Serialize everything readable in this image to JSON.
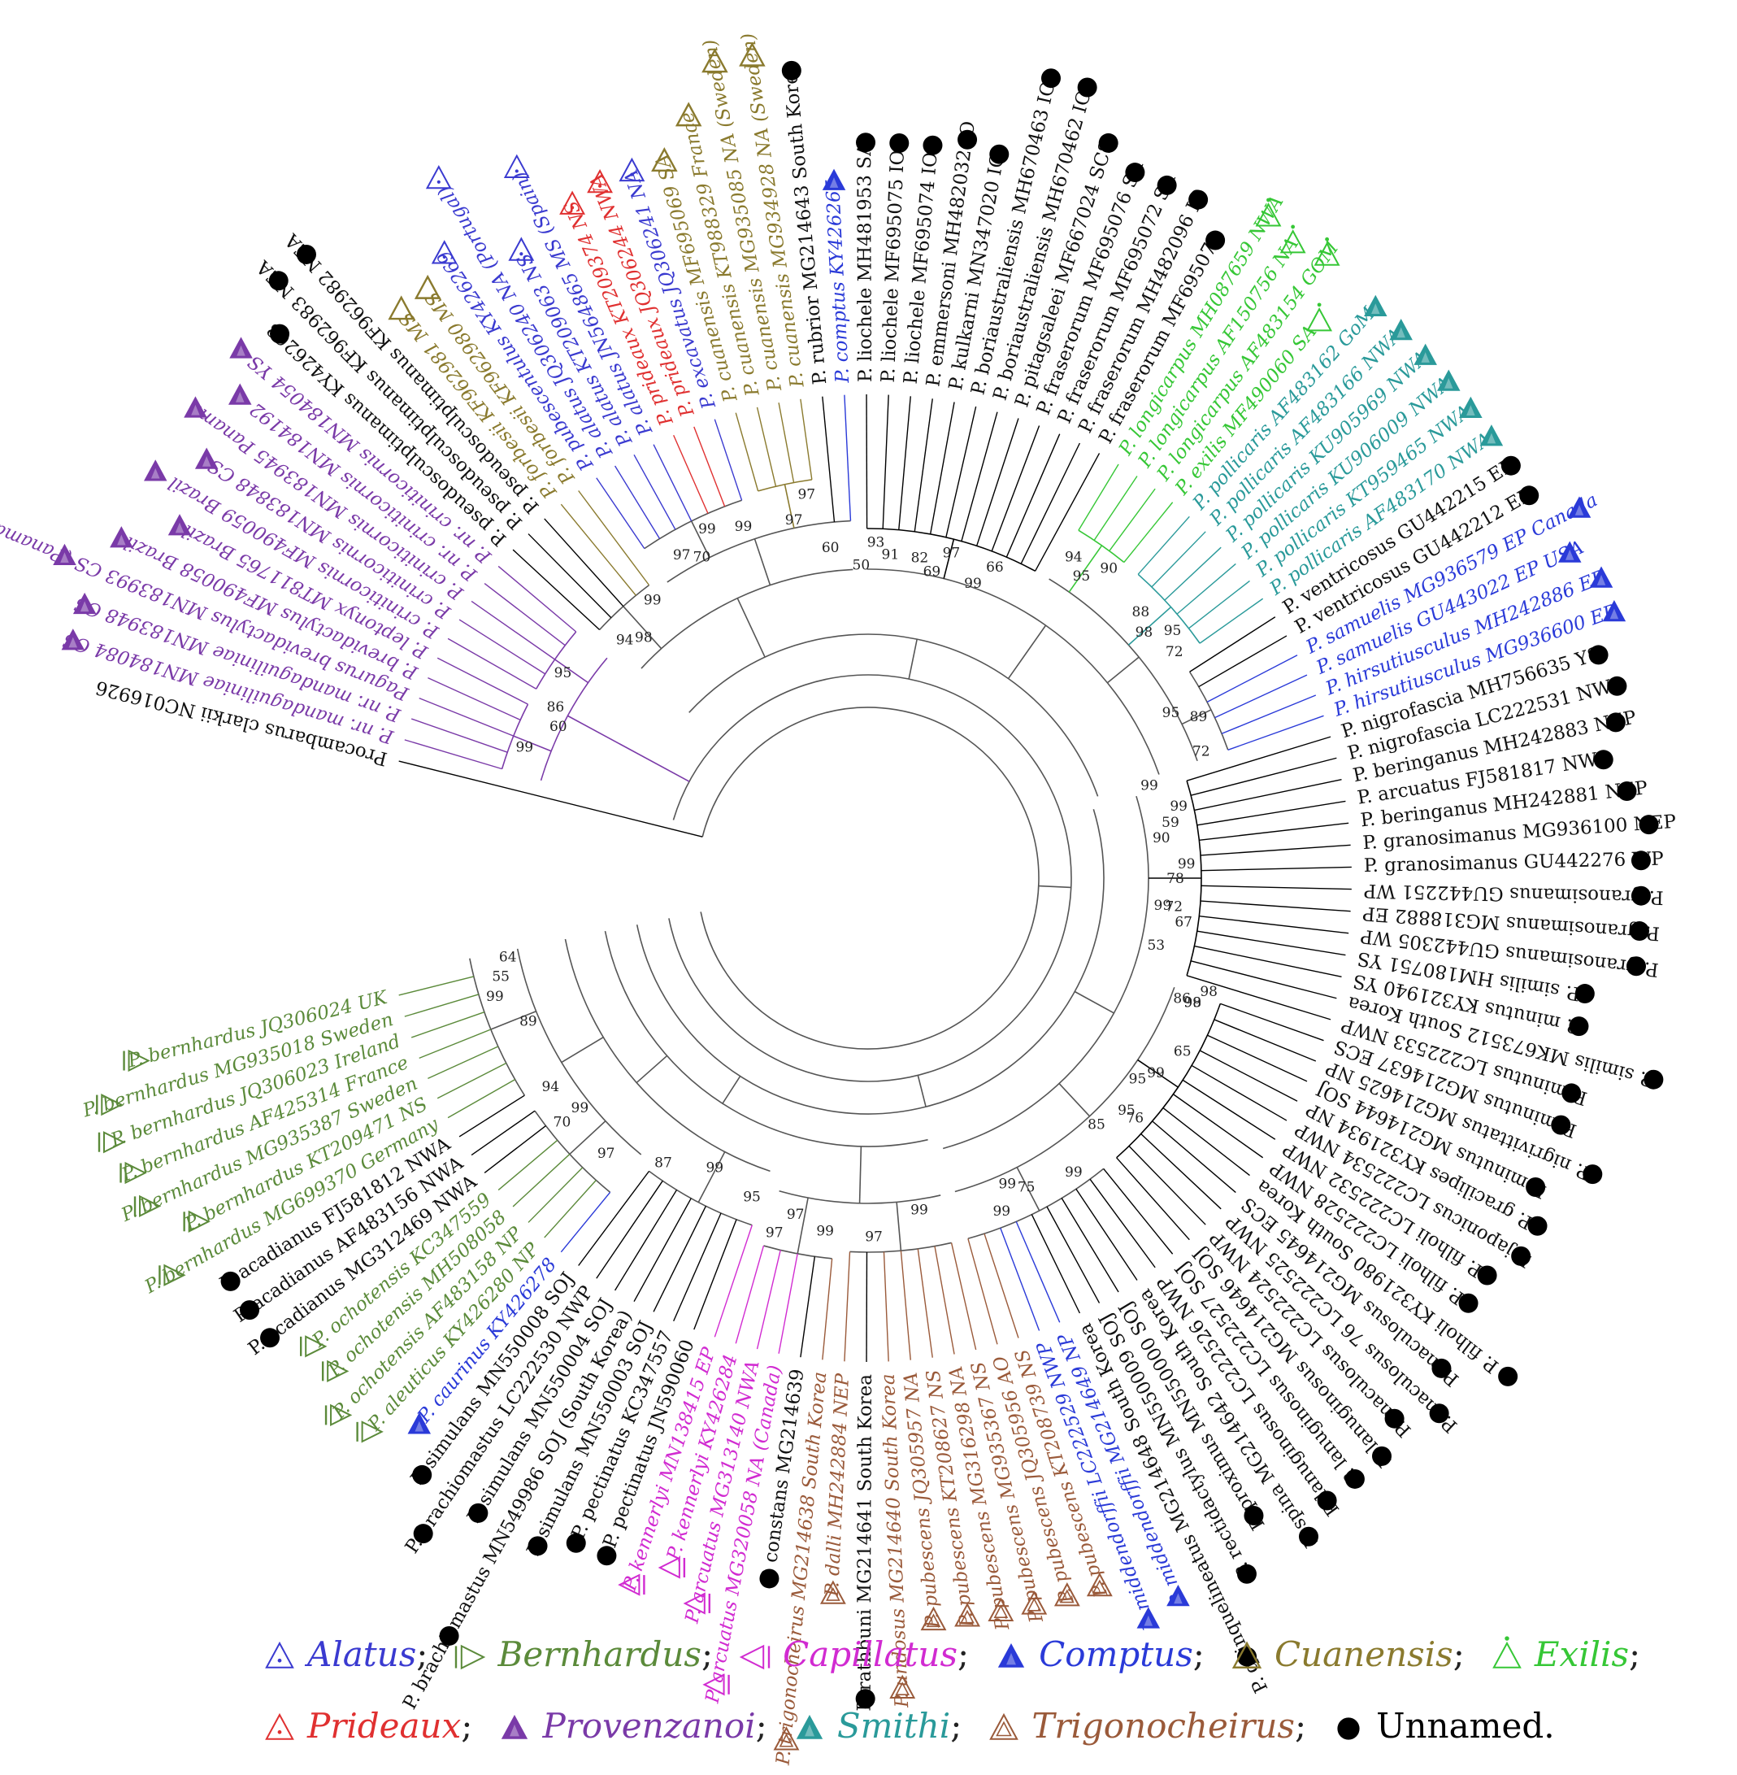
{
  "root_label": "Procambarus clarkii NC016926",
  "groups": {
    "alatus": {
      "label": "Alatus",
      "color": "#3a3ad0",
      "icon": "triangle-dot-outline"
    },
    "bernhardus": {
      "label": "Bernhardus",
      "color": "#5b8a3a",
      "icon": "triangle-right-bar-outline"
    },
    "capillatus": {
      "label": "Capillatus",
      "color": "#d12bd1",
      "icon": "triangle-left-bar-outline"
    },
    "comptus": {
      "label": "Comptus",
      "color": "#2a3ad8",
      "icon": "triangle-filled"
    },
    "cuanensis": {
      "label": "Cuanensis",
      "color": "#8a7a2e",
      "icon": "triangle-outline"
    },
    "exilis": {
      "label": "Exilis",
      "color": "#36c736",
      "icon": "triangle-dot-above"
    },
    "prideaux": {
      "label": "Prideaux",
      "color": "#e03030",
      "icon": "triangle-dot-outline"
    },
    "provenzanoi": {
      "label": "Provenzanoi",
      "color": "#7a3aa8",
      "icon": "triangle-filled"
    },
    "smithi": {
      "label": "Smithi",
      "color": "#2a9a9a",
      "icon": "triangle-filled"
    },
    "trigonocheirus": {
      "label": "Trigonocheirus",
      "color": "#9a5a3a",
      "icon": "triangle-double-outline"
    },
    "unnamed": {
      "label": "Unnamed.",
      "color": "#000000",
      "icon": "filled-circle"
    }
  },
  "legend_order": [
    "alatus",
    "bernhardus",
    "capillatus",
    "comptus",
    "cuanensis",
    "exilis",
    "prideaux",
    "provenzanoi",
    "smithi",
    "trigonocheirus",
    "unnamed"
  ],
  "leaves": [
    {
      "label": "Procambarus clarkii NC016926",
      "group": "unnamed",
      "marker": false
    },
    {
      "label": "P. nr. mandaguiliniae MN184084 CS",
      "group": "provenzanoi"
    },
    {
      "label": "P. nr. mandaguiliniae MN183948 CS",
      "group": "provenzanoi"
    },
    {
      "label": "Pagurus brevidactylus MN183993 CS (Panama)",
      "group": "provenzanoi"
    },
    {
      "label": "P. brevidactylus MF490058 Brazil",
      "group": "provenzanoi"
    },
    {
      "label": "P. leptonyx MT811765 Brazil",
      "group": "provenzanoi"
    },
    {
      "label": "P. criniticornis MF490059 Brazil",
      "group": "provenzanoi"
    },
    {
      "label": "P. criniticornis MN183848 CS",
      "group": "provenzanoi"
    },
    {
      "label": "P. criniticornis MN183945 Panama",
      "group": "provenzanoi"
    },
    {
      "label": "P. nr. criniticornis MN184192",
      "group": "provenzanoi"
    },
    {
      "label": "P. nr. criniticornis MN184054 YS",
      "group": "provenzanoi"
    },
    {
      "label": "P. pseudosculptimanus KY426268",
      "group": "unnamed"
    },
    {
      "label": "P. pseudosculptimanus KF962983 NEA",
      "group": "unnamed"
    },
    {
      "label": "P. pseudosculptimanus KF962982 NEA",
      "group": "unnamed"
    },
    {
      "label": "P. forbesii KF962981 MS",
      "group": "cuanensis"
    },
    {
      "label": "P. forbesii KF962980 MS",
      "group": "cuanensis"
    },
    {
      "label": "P. pubescentulus KY426269",
      "group": "alatus"
    },
    {
      "label": "P. alatus JQ306240 NA (Portugal)",
      "group": "alatus"
    },
    {
      "label": "P. alatus KT209063 NS",
      "group": "alatus"
    },
    {
      "label": "P. alatus JN564865 MS (Spain)",
      "group": "alatus"
    },
    {
      "label": "P. prideaux KT209374 NS",
      "group": "prideaux"
    },
    {
      "label": "P. prideaux JQ306244 NWA",
      "group": "prideaux"
    },
    {
      "label": "P. excavatus JQ306241 NA",
      "group": "alatus"
    },
    {
      "label": "P. cuanensis MF695069 SA",
      "group": "cuanensis"
    },
    {
      "label": "P. cuanensis KT988329 France",
      "group": "cuanensis"
    },
    {
      "label": "P. cuanensis MG935085 NA (Sweden)",
      "group": "cuanensis"
    },
    {
      "label": "P. cuanensis MG934928 NA (Sweden)",
      "group": "cuanensis"
    },
    {
      "label": "P. rubrior MG214643 South Korea",
      "group": "unnamed"
    },
    {
      "label": "P. comptus KY426265",
      "group": "comptus"
    },
    {
      "label": "P. liochele MH481953 SA",
      "group": "unnamed"
    },
    {
      "label": "P. liochele MF695075 IO",
      "group": "unnamed"
    },
    {
      "label": "P. liochele MF695074 IO",
      "group": "unnamed"
    },
    {
      "label": "P. emmersoni MH482032 IO",
      "group": "unnamed"
    },
    {
      "label": "P. kulkarni MN347020 IO",
      "group": "unnamed"
    },
    {
      "label": "P. boriaustraliensis MH670463 IO",
      "group": "unnamed"
    },
    {
      "label": "P. boriaustraliensis MH670462 IO",
      "group": "unnamed"
    },
    {
      "label": "P. pitagsaleei MF667024 SCS",
      "group": "unnamed"
    },
    {
      "label": "P. fraserorum MF695076 SA",
      "group": "unnamed"
    },
    {
      "label": "P. fraserorum MF695072 SA",
      "group": "unnamed"
    },
    {
      "label": "P. fraserorum MH482096 IO",
      "group": "unnamed"
    },
    {
      "label": "P. fraserorum MF695073",
      "group": "unnamed"
    },
    {
      "label": "P. longicarpus MH087659 NWA",
      "group": "exilis"
    },
    {
      "label": "P. longicarpus AF150756 NA",
      "group": "exilis"
    },
    {
      "label": "P. longicarpus AF483154 GOM",
      "group": "exilis"
    },
    {
      "label": "P. exilis MF490060 SA",
      "group": "exilis"
    },
    {
      "label": "P. pollicaris AF483162 GoM",
      "group": "smithi"
    },
    {
      "label": "P. pollicaris AF483166 NWA",
      "group": "smithi"
    },
    {
      "label": "P. pollicaris KU905969 NWA",
      "group": "smithi"
    },
    {
      "label": "P. pollicaris KU906009 NWA",
      "group": "smithi"
    },
    {
      "label": "P. pollicaris KT959465 NWA",
      "group": "smithi"
    },
    {
      "label": "P. pollicaris AF483170 NWA",
      "group": "smithi"
    },
    {
      "label": "P. ventricosus GU442215 EP",
      "group": "unnamed"
    },
    {
      "label": "P. ventricosus GU442212 EP",
      "group": "unnamed"
    },
    {
      "label": "P. samuelis MG936579 EP Canada",
      "group": "comptus"
    },
    {
      "label": "P. samuelis GU443022 EP USA",
      "group": "comptus"
    },
    {
      "label": "P. hirsutiusculus MH242886 EP",
      "group": "comptus"
    },
    {
      "label": "P. hirsutiusculus MG936600 EP",
      "group": "comptus"
    },
    {
      "label": "P. nigrofascia MH756635 YS",
      "group": "unnamed"
    },
    {
      "label": "P. nigrofascia LC222531 NWP",
      "group": "unnamed"
    },
    {
      "label": "P. beringanus MH242883 NEP",
      "group": "unnamed"
    },
    {
      "label": "P. arcuatus FJ581817 NWA",
      "group": "unnamed"
    },
    {
      "label": "P. beringanus MH242881 NEP",
      "group": "unnamed"
    },
    {
      "label": "P. granosimanus MG936100 NEP",
      "group": "unnamed"
    },
    {
      "label": "P. granosimanus GU442276 WP",
      "group": "unnamed"
    },
    {
      "label": "P. granosimanus GU442251 WP",
      "group": "unnamed"
    },
    {
      "label": "P. granosimanus MG318882 EP",
      "group": "unnamed"
    },
    {
      "label": "P. granosimanus GU442305 WP",
      "group": "unnamed"
    },
    {
      "label": "P. similis HM180751 YS",
      "group": "unnamed"
    },
    {
      "label": "P. minutus KY321940 YS",
      "group": "unnamed"
    },
    {
      "label": "P. similis MK673512 South Korea",
      "group": "unnamed"
    },
    {
      "label": "P. minutus LC222533 NWP",
      "group": "unnamed"
    },
    {
      "label": "P. minutus MG214637 ECS",
      "group": "unnamed"
    },
    {
      "label": "P. nigrivittatus MG214625 NP",
      "group": "unnamed"
    },
    {
      "label": "P. minutus MG214644 SOJ",
      "group": "unnamed"
    },
    {
      "label": "P. gracilipes KY321934 NP",
      "group": "unnamed"
    },
    {
      "label": "P. japonicus LC222534 NWP",
      "group": "unnamed"
    },
    {
      "label": "P. filholi LC222532 NWP",
      "group": "unnamed"
    },
    {
      "label": "P. filholi LC222528 NWP",
      "group": "unnamed"
    },
    {
      "label": "P. filholi KY321980 South Korea",
      "group": "unnamed"
    },
    {
      "label": "P. maculosus MG214645 ECS",
      "group": "unnamed"
    },
    {
      "label": "P. maculosus 76 LC222525 NWP",
      "group": "unnamed"
    },
    {
      "label": "P. maculosus LC222524 NWP",
      "group": "unnamed"
    },
    {
      "label": "P. lanuginosus MG214646 SOJ",
      "group": "unnamed"
    },
    {
      "label": "P. lanuginosus LC222527 SOJ",
      "group": "unnamed"
    },
    {
      "label": "P. lanuginosus LC222526 NWP",
      "group": "unnamed"
    },
    {
      "label": "P. spina MG214642 South Korea",
      "group": "unnamed"
    },
    {
      "label": "P. proximus MN550000 SOJ",
      "group": "unnamed"
    },
    {
      "label": "P. rectidactylus MN550009 SOJ",
      "group": "unnamed"
    },
    {
      "label": "P. quinquelineatus MG214648 South Korea",
      "group": "unnamed"
    },
    {
      "label": "P. middendorffii MG214649 NP",
      "group": "comptus"
    },
    {
      "label": "P. middendorffii LC222529 NWP",
      "group": "comptus"
    },
    {
      "label": "P. pubescens KT208739 NS",
      "group": "trigonocheirus"
    },
    {
      "label": "P. pubescens JQ305956 AO",
      "group": "trigonocheirus"
    },
    {
      "label": "P. pubescens MG935367 NS",
      "group": "trigonocheirus"
    },
    {
      "label": "P. pubescens MG316298 NA",
      "group": "trigonocheirus"
    },
    {
      "label": "P. pubescens KT208627 NS",
      "group": "trigonocheirus"
    },
    {
      "label": "P. pubescens JQ305957 NA",
      "group": "trigonocheirus"
    },
    {
      "label": "P. undosus MG214640 South Korea",
      "group": "trigonocheirus"
    },
    {
      "label": "P. rathbuni MG214641 South Korea",
      "group": "unnamed"
    },
    {
      "label": "P. dalli MH242884 NEP",
      "group": "trigonocheirus"
    },
    {
      "label": "P. trigonocheirus MG214638 South Korea",
      "group": "trigonocheirus"
    },
    {
      "label": "P. constans MG214639",
      "group": "unnamed"
    },
    {
      "label": "P. arcuatus MG320058 NA (Canada)",
      "group": "capillatus"
    },
    {
      "label": "P. arcuatus MG313140 NWA",
      "group": "capillatus"
    },
    {
      "label": "P. kennerlyi KY426284",
      "group": "capillatus"
    },
    {
      "label": "P. kennerlyi MN138415 EP",
      "group": "capillatus"
    },
    {
      "label": "P. pectinatus JN590060",
      "group": "unnamed"
    },
    {
      "label": "P. pectinatus KC347557",
      "group": "unnamed"
    },
    {
      "label": "P. simulans MN550003 SOJ",
      "group": "unnamed"
    },
    {
      "label": "P. brachiomastus MN549986 SOJ (South Korea)",
      "group": "unnamed"
    },
    {
      "label": "P. simulans MN550004 SOJ",
      "group": "unnamed"
    },
    {
      "label": "P. brachiomastus LC222530 NWP",
      "group": "unnamed"
    },
    {
      "label": "P. simulans MN550008 SOJ",
      "group": "unnamed"
    },
    {
      "label": "P. caurinus KY426278",
      "group": "comptus"
    },
    {
      "label": "P. aleuticus KY426280 NP",
      "group": "bernhardus"
    },
    {
      "label": "P. ochotensis AF483158 NP",
      "group": "bernhardus"
    },
    {
      "label": "P. ochotensis MH508058",
      "group": "bernhardus"
    },
    {
      "label": "P. ochotensis KC347559",
      "group": "bernhardus"
    },
    {
      "label": "P. acadianus MG312469 NWA",
      "group": "unnamed"
    },
    {
      "label": "P. acadianus AF483156 NWA",
      "group": "unnamed"
    },
    {
      "label": "P. acadianus FJ581812 NWA",
      "group": "unnamed"
    },
    {
      "label": "P. bernhardus MG699370 Germany",
      "group": "bernhardus"
    },
    {
      "label": "P. bernhardus KT209471 NS",
      "group": "bernhardus"
    },
    {
      "label": "P. bernhardus MG935387 Sweden",
      "group": "bernhardus"
    },
    {
      "label": "P. bernhardus AF425314 France",
      "group": "bernhardus"
    },
    {
      "label": "P. bernhardus JQ306023 Ireland",
      "group": "bernhardus"
    },
    {
      "label": "P. bernhardus MG935018 Sweden",
      "group": "bernhardus"
    },
    {
      "label": "P. bernhardus JQ306024 UK",
      "group": "bernhardus"
    }
  ],
  "bootstrap": [
    {
      "value": "99",
      "leaf": 3
    },
    {
      "value": "86",
      "leaf": 6
    },
    {
      "value": "60",
      "leaf": 5
    },
    {
      "value": "95",
      "leaf": 8
    },
    {
      "value": "94",
      "leaf": 12
    },
    {
      "value": "98",
      "leaf": 13
    },
    {
      "value": "99",
      "leaf": 15
    },
    {
      "value": "97",
      "leaf": 18
    },
    {
      "value": "70",
      "leaf": 19
    },
    {
      "value": "99",
      "leaf": 20
    },
    {
      "value": "99",
      "leaf": 22
    },
    {
      "value": "97",
      "leaf": 25
    },
    {
      "value": "97",
      "leaf": 26
    },
    {
      "value": "60",
      "leaf": 27
    },
    {
      "value": "50",
      "leaf": 29
    },
    {
      "value": "93",
      "leaf": 30
    },
    {
      "value": "91",
      "leaf": 31
    },
    {
      "value": "69",
      "leaf": 34
    },
    {
      "value": "97",
      "leaf": 35
    },
    {
      "value": "82",
      "leaf": 33
    },
    {
      "value": "99",
      "leaf": 37
    },
    {
      "value": "66",
      "leaf": 38
    },
    {
      "value": "94",
      "leaf": 42
    },
    {
      "value": "95",
      "leaf": 43
    },
    {
      "value": "90",
      "leaf": 44
    },
    {
      "value": "88",
      "leaf": 47
    },
    {
      "value": "98",
      "leaf": 48
    },
    {
      "value": "95",
      "leaf": 49
    },
    {
      "value": "72",
      "leaf": 50
    },
    {
      "value": "95",
      "leaf": 53
    },
    {
      "value": "89",
      "leaf": 54
    },
    {
      "value": "72",
      "leaf": 56
    },
    {
      "value": "99",
      "leaf": 57
    },
    {
      "value": "99",
      "leaf": 59
    },
    {
      "value": "59",
      "leaf": 60
    },
    {
      "value": "90",
      "leaf": 61
    },
    {
      "value": "99",
      "leaf": 63
    },
    {
      "value": "78",
      "leaf": 64
    },
    {
      "value": "99",
      "leaf": 66
    },
    {
      "value": "67",
      "leaf": 67
    },
    {
      "value": "72",
      "leaf": 66
    },
    {
      "value": "53",
      "leaf": 69
    },
    {
      "value": "98",
      "leaf": 71
    },
    {
      "value": "99",
      "leaf": 72
    },
    {
      "value": "86",
      "leaf": 72
    },
    {
      "value": "65",
      "leaf": 75
    },
    {
      "value": "99",
      "leaf": 77
    },
    {
      "value": "95",
      "leaf": 78
    },
    {
      "value": "76",
      "leaf": 80
    },
    {
      "value": "95",
      "leaf": 80
    },
    {
      "value": "85",
      "leaf": 82
    },
    {
      "value": "99",
      "leaf": 85
    },
    {
      "value": "75",
      "leaf": 88
    },
    {
      "value": "99",
      "leaf": 89
    },
    {
      "value": "99",
      "leaf": 90
    },
    {
      "value": "98",
      "leaf": 72
    },
    {
      "value": "99",
      "leaf": 95
    },
    {
      "value": "97",
      "leaf": 98
    },
    {
      "value": "99",
      "leaf": 101
    },
    {
      "value": "97",
      "leaf": 103
    },
    {
      "value": "97",
      "leaf": 104
    },
    {
      "value": "95",
      "leaf": 106
    },
    {
      "value": "99",
      "leaf": 109
    },
    {
      "value": "87",
      "leaf": 112
    },
    {
      "value": "97",
      "leaf": 115
    },
    {
      "value": "99",
      "leaf": 118
    },
    {
      "value": "70",
      "leaf": 118
    },
    {
      "value": "94",
      "leaf": 120
    },
    {
      "value": "89",
      "leaf": 124
    },
    {
      "value": "99",
      "leaf": 126
    },
    {
      "value": "55",
      "leaf": 127
    },
    {
      "value": "64",
      "leaf": 128
    }
  ]
}
